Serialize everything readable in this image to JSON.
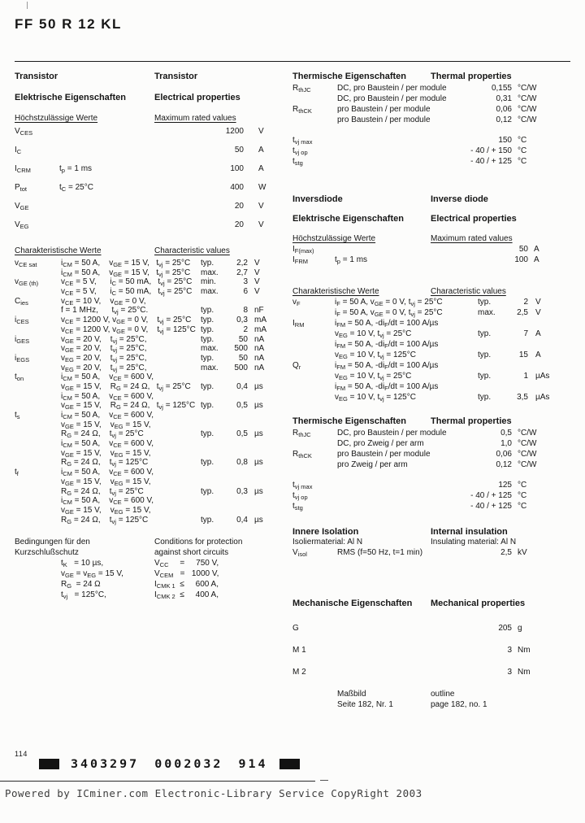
{
  "page": {
    "title": "FF 50 R 12 KL"
  },
  "transistor": {
    "heading": {
      "de": "Transistor",
      "en": "Transistor"
    },
    "electrical": {
      "de": "Elektrische Eigenschaften",
      "en": "Electrical properties"
    },
    "max_rated": {
      "header": {
        "de": "Höchstzulässige Werte",
        "en": "Maximum rated values"
      },
      "rows": [
        {
          "s": "V~CES~",
          "c": "",
          "v": "1200",
          "u": "V"
        },
        {
          "s": "I~C~",
          "c": "",
          "v": "50",
          "u": "A"
        },
        {
          "s": "I~CRM~",
          "c": "t~p~ = 1 ms",
          "v": "100",
          "u": "A"
        },
        {
          "s": "P~tot~",
          "c": "t~C~ = 25°C",
          "v": "400",
          "u": "W"
        },
        {
          "s": "V~GE~",
          "c": "",
          "v": "20",
          "u": "V"
        },
        {
          "s": "V~EG~",
          "c": "",
          "v": "20",
          "u": "V"
        }
      ]
    },
    "characteristic": {
      "header": {
        "de": "Charakteristische Werte",
        "en": "Characteristic values"
      },
      "lines": [
        {
          "s": "v~CE sat~",
          "c": "i~CM~ = 50 A,    v~GE~ = 15 V,   t~vj~ = 25°C",
          "q": "typ.",
          "v": "2,2",
          "u": "V"
        },
        {
          "s": "",
          "c": "i~CM~ = 50 A,    v~GE~ = 15 V,   t~vj~ = 25°C",
          "q": "max.",
          "v": "2,7",
          "u": "V"
        },
        {
          "s": "v~GE (th)~",
          "c": "v~CE~ = 5 V,      i~C~ = 50 mA,   t~vj~ = 25°C",
          "q": "min.",
          "v": "3",
          "u": "V"
        },
        {
          "s": "",
          "c": "v~CE~ = 5 V,      i~C~ = 50 mA,   t~vj~ = 25°C",
          "q": "max.",
          "v": "6",
          "u": "V"
        },
        {
          "s": "C~ies~",
          "c": "v~CE~ = 10 V,    v~GE~ = 0 V,",
          "q": "",
          "v": "",
          "u": ""
        },
        {
          "s": "",
          "c": "f = 1 MHz,      t~vj~ = 25°C.",
          "q": "typ.",
          "v": "8",
          "u": "nF"
        },
        {
          "s": "i~CES~",
          "c": "v~CE~ = 1200 V, v~GE~ = 0 V,    t~vj~ = 25°C",
          "q": "typ.",
          "v": "0,3",
          "u": "mA"
        },
        {
          "s": "",
          "c": "v~CE~ = 1200 V, v~GE~ = 0 V,    t~vj~ = 125°C",
          "q": "typ.",
          "v": "2",
          "u": "mA"
        },
        {
          "s": "i~GES~",
          "c": "v~GE~ = 20 V,    t~vj~ = 25°C,",
          "q": "typ.",
          "v": "50",
          "u": "nA"
        },
        {
          "s": "",
          "c": "v~GE~ = 20 V,    t~vj~ = 25°C,",
          "q": "max.",
          "v": "500",
          "u": "nA"
        },
        {
          "s": "i~EGS~",
          "c": "v~EG~ = 20 V,    t~vj~ = 25°C,",
          "q": "typ.",
          "v": "50",
          "u": "nA"
        },
        {
          "s": "",
          "c": "v~EG~ = 20 V,    t~vj~ = 25°C,",
          "q": "max.",
          "v": "500",
          "u": "nA"
        },
        {
          "s": "t~on~",
          "c": "i~CM~ = 50 A,    v~CE~ = 600 V,",
          "q": "",
          "v": "",
          "u": ""
        },
        {
          "s": "",
          "c": "v~GE~ = 15 V,    R~G~ = 24 Ω,   t~vj~ = 25°C",
          "q": "typ.",
          "v": "0,4",
          "u": "µs"
        },
        {
          "s": "",
          "c": "i~CM~ = 50 A,    v~CE~ = 600 V,",
          "q": "",
          "v": "",
          "u": ""
        },
        {
          "s": "",
          "c": "v~GE~ = 15 V,    R~G~ = 24 Ω,   t~vj~ = 125°C",
          "q": "typ.",
          "v": "0,5",
          "u": "µs"
        },
        {
          "s": "t~s~",
          "c": "i~CM~ = 50 A,    v~CE~ = 600 V,",
          "q": "",
          "v": "",
          "u": ""
        },
        {
          "s": "",
          "c": "v~GE~ = 15 V,    v~EG~ = 15 V,",
          "q": "",
          "v": "",
          "u": ""
        },
        {
          "s": "",
          "c": "R~G~ = 24 Ω,    t~vj~ = 25°C",
          "q": "typ.",
          "v": "0,5",
          "u": "µs"
        },
        {
          "s": "",
          "c": "i~CM~ = 50 A,    v~CE~ = 600 V,",
          "q": "",
          "v": "",
          "u": ""
        },
        {
          "s": "",
          "c": "v~GE~ = 15 V,    v~EG~ = 15 V,",
          "q": "",
          "v": "",
          "u": ""
        },
        {
          "s": "",
          "c": "R~G~ = 24 Ω,    t~vj~ = 125°C",
          "q": "typ.",
          "v": "0,8",
          "u": "µs"
        },
        {
          "s": "t~f~",
          "c": "i~CM~ = 50 A,    v~CE~ = 600 V,",
          "q": "",
          "v": "",
          "u": ""
        },
        {
          "s": "",
          "c": "v~GE~ = 15 V,    v~EG~ = 15 V,",
          "q": "",
          "v": "",
          "u": ""
        },
        {
          "s": "",
          "c": "R~G~ = 24 Ω,    t~vj~ = 25°C",
          "q": "typ.",
          "v": "0,3",
          "u": "µs"
        },
        {
          "s": "",
          "c": "i~CM~ = 50 A,    v~CE~ = 600 V,",
          "q": "",
          "v": "",
          "u": ""
        },
        {
          "s": "",
          "c": "v~GE~ = 15 V,    v~EG~ = 15 V,",
          "q": "",
          "v": "",
          "u": ""
        },
        {
          "s": "",
          "c": "R~G~ = 24 Ω,    t~vj~ = 125°C",
          "q": "typ.",
          "v": "0,4",
          "u": "µs"
        }
      ]
    },
    "short_circuit": {
      "header1": {
        "de": "Bedingungen für den",
        "en": "Conditions for protection"
      },
      "header2": {
        "de": "Kurzschlußschutz",
        "en": "against short circuits"
      },
      "left": [
        "t~K~   = 10 µs,",
        "v~GE~ = v~EG~ = 15 V,",
        "R~G~  = 24 Ω",
        "t~vj~   = 125°C,"
      ],
      "right": [
        "V~CC~     =     750 V,",
        "V~CEM~   =   1000 V,",
        "I~CMK 1~  ≤     600 A,",
        "I~CMK 2~  ≤     400 A,"
      ]
    },
    "thermal": {
      "header": {
        "de": "Thermische Eigenschaften",
        "en": "Thermal properties"
      },
      "rows": [
        {
          "s": "R~thJC~",
          "d": "DC, pro Baustein / per module",
          "v": "0,155",
          "u": "°C/W"
        },
        {
          "s": "",
          "d": "DC, pro Baustein / per module",
          "v": "0,31",
          "u": "°C/W"
        },
        {
          "s": "R~thCK~",
          "d": "pro Baustein / per module",
          "v": "0,06",
          "u": "°C/W"
        },
        {
          "s": "",
          "d": "pro Baustein / per module",
          "v": "0,12",
          "u": "°C/W"
        }
      ],
      "temps": [
        {
          "s": "t~vj max~",
          "v": "150",
          "u": "°C"
        },
        {
          "s": "t~vj op~",
          "v": "- 40 / + 150",
          "u": "°C"
        },
        {
          "s": "t~stg~",
          "v": "- 40 / + 125",
          "u": "°C"
        }
      ]
    }
  },
  "diode": {
    "heading": {
      "de": "Inversdiode",
      "en": "Inverse diode"
    },
    "electrical": {
      "de": "Elektrische Eigenschaften",
      "en": "Electrical properties"
    },
    "max_rated": {
      "header": {
        "de": "Höchstzulässige Werte",
        "en": "Maximum rated values"
      },
      "rows": [
        {
          "s": "I~F(max)~",
          "c": "",
          "v": "50",
          "u": "A"
        },
        {
          "s": "I~FRM~",
          "c": "t~p~ = 1 ms",
          "v": "100",
          "u": "A"
        }
      ]
    },
    "characteristic": {
      "header": {
        "de": "Charakteristische Werte",
        "en": "Characteristic values"
      },
      "lines": [
        {
          "s": "v~F~",
          "c": "i~F~ = 50 A, v~GE~ = 0 V, t~vj~ = 25°C",
          "q": "typ.",
          "v": "2",
          "u": "V"
        },
        {
          "s": "",
          "c": "i~F~ = 50 A, v~GE~ = 0 V, t~vj~ = 25°C",
          "q": "max.",
          "v": "2,5",
          "u": "V"
        },
        {
          "s": "I~RM~",
          "c": "i~FM~ = 50 A, -di~F~/dt = 100 A/µs",
          "q": "",
          "v": "",
          "u": ""
        },
        {
          "s": "",
          "c": "v~EG~ = 10 V, t~vj~ = 25°C",
          "q": "typ.",
          "v": "7",
          "u": "A"
        },
        {
          "s": "",
          "c": "i~FM~ = 50 A, -di~F~/dt = 100 A/µs",
          "q": "",
          "v": "",
          "u": ""
        },
        {
          "s": "",
          "c": "v~EG~ = 10 V, t~vj~ = 125°C",
          "q": "typ.",
          "v": "15",
          "u": "A"
        },
        {
          "s": "Q~r~",
          "c": "i~FM~ = 50 A, -di~F~/dt = 100 A/µs",
          "q": "",
          "v": "",
          "u": ""
        },
        {
          "s": "",
          "c": "v~EG~ = 10 V, t~vj~ = 25°C",
          "q": "typ.",
          "v": "1",
          "u": "µAs"
        },
        {
          "s": "",
          "c": "i~FM~ = 50 A, -di~F~/dt = 100 A/µs",
          "q": "",
          "v": "",
          "u": ""
        },
        {
          "s": "",
          "c": "v~EG~ = 10 V, t~vj~ = 125°C",
          "q": "typ.",
          "v": "3,5",
          "u": "µAs"
        }
      ]
    },
    "thermal": {
      "header": {
        "de": "Thermische Eigenschaften",
        "en": "Thermal properties"
      },
      "rows": [
        {
          "s": "R~thJC~",
          "d": "DC, pro Baustein / per module",
          "v": "0,5",
          "u": "°C/W"
        },
        {
          "s": "",
          "d": "DC, pro Zweig / per arm",
          "v": "1,0",
          "u": "°C/W"
        },
        {
          "s": "R~thCK~",
          "d": "pro Baustein / per module",
          "v": "0,06",
          "u": "°C/W"
        },
        {
          "s": "",
          "d": "pro Zweig / per arm",
          "v": "0,12",
          "u": "°C/W"
        }
      ],
      "temps": [
        {
          "s": "t~vj max~",
          "v": "125",
          "u": "°C"
        },
        {
          "s": "t~vj op~",
          "v": "- 40 / + 125",
          "u": "°C"
        },
        {
          "s": "t~stg~",
          "v": "- 40 / + 125",
          "u": "°C"
        }
      ]
    }
  },
  "insulation": {
    "header": {
      "de": "Innere Isolation",
      "en": "Internal insulation"
    },
    "material": {
      "de": "Isoliermaterial:  Al N",
      "en": "Insulating material: Al N"
    },
    "row": {
      "s": "V~isol~",
      "d": "RMS (f=50 Hz, t=1 min)",
      "v": "2,5",
      "u": "kV"
    }
  },
  "mechanical": {
    "header": {
      "de": "Mechanische Eigenschaften",
      "en": "Mechanical properties"
    },
    "rows": [
      {
        "s": "G",
        "v": "205",
        "u": "g"
      },
      {
        "s": "M 1",
        "v": "3",
        "u": "Nm"
      },
      {
        "s": "M 2",
        "v": "3",
        "u": "Nm"
      }
    ],
    "outline": {
      "de1": "Maßbild",
      "de2": "Seite 182, Nr. 1",
      "en1": "outline",
      "en2": "page 182, no. 1"
    }
  },
  "footer": {
    "page_number": "114",
    "barcode": "3403297 0002032 914",
    "watermark": "Powered by ICminer.com Electronic-Library Service CopyRight 2003"
  }
}
